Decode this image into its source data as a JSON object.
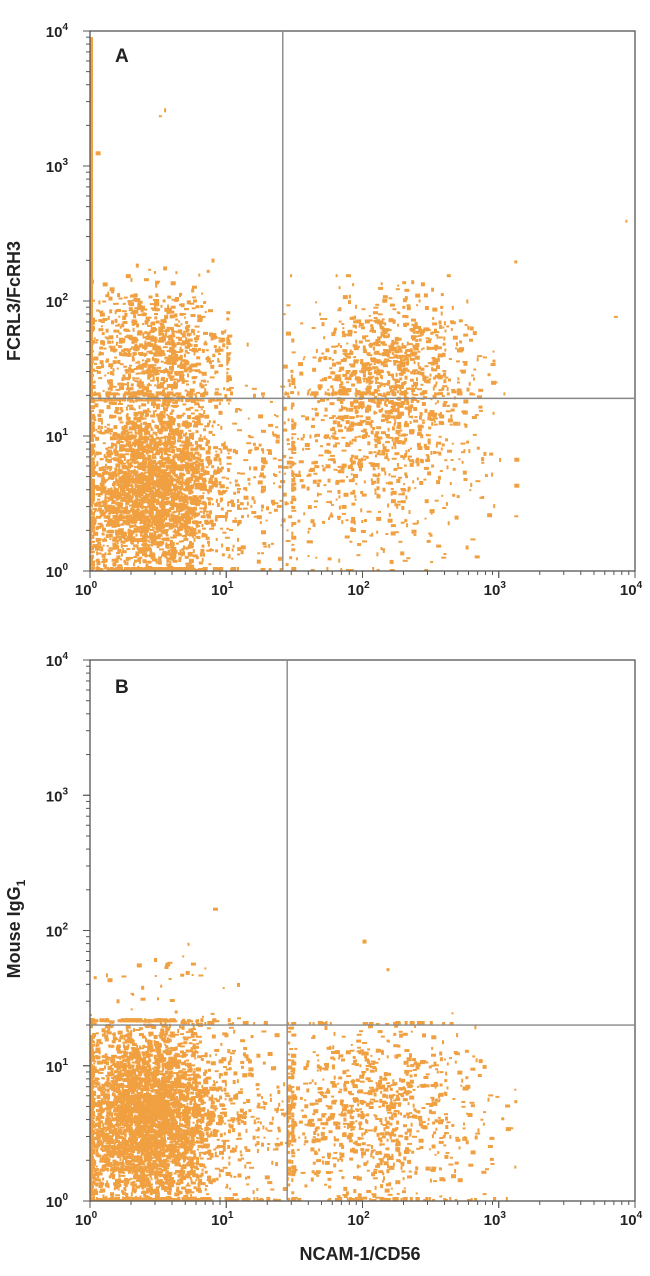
{
  "chart_data": [
    {
      "type": "scatter",
      "panel_label": "A",
      "xlabel": "",
      "ylabel": "FCRL3/FcRH3",
      "x_scale": "log",
      "y_scale": "log",
      "xlim": [
        1,
        10000
      ],
      "ylim": [
        1,
        10000
      ],
      "ticks": [
        1,
        10,
        100,
        1000,
        10000
      ],
      "tick_labels": [
        {
          "base": "10",
          "exp": "0"
        },
        {
          "base": "10",
          "exp": "1"
        },
        {
          "base": "10",
          "exp": "2"
        },
        {
          "base": "10",
          "exp": "3"
        },
        {
          "base": "10",
          "exp": "4"
        }
      ],
      "quadrant_gates": {
        "x": 26,
        "y": 19
      },
      "color": "#f0a040",
      "populations": [
        {
          "cx": 2.6,
          "cy": 4,
          "sx": 0.26,
          "sy": 0.36,
          "n": 2800,
          "xmin": 1,
          "xmax": 12,
          "ymin": 1,
          "ymax": 20
        },
        {
          "cx": 2.8,
          "cy": 40,
          "sx": 0.28,
          "sy": 0.25,
          "n": 900,
          "xmin": 1,
          "xmax": 10,
          "ymin": 18,
          "ymax": 300
        },
        {
          "cx": 150,
          "cy": 28,
          "sx": 0.3,
          "sy": 0.28,
          "n": 900,
          "xmin": 26,
          "xmax": 900,
          "ymin": 5,
          "ymax": 150
        },
        {
          "cx": 110,
          "cy": 6,
          "sx": 0.4,
          "sy": 0.38,
          "n": 520,
          "xmin": 18,
          "xmax": 1300,
          "ymin": 1,
          "ymax": 20
        },
        {
          "cx": 15,
          "cy": 5,
          "sx": 0.35,
          "sy": 0.4,
          "n": 260,
          "xmin": 5,
          "xmax": 30,
          "ymin": 1,
          "ymax": 100
        }
      ],
      "outliers": [
        [
          3.5,
          2500
        ],
        [
          3.2,
          2300
        ],
        [
          1300,
          190
        ],
        [
          7000,
          75
        ],
        [
          8500,
          380
        ],
        [
          1.1,
          1200
        ]
      ],
      "axis_line_x": [
        1.0,
        1.0
      ]
    },
    {
      "type": "scatter",
      "panel_label": "B",
      "xlabel": "NCAM-1/CD56",
      "ylabel": "Mouse IgG",
      "ylabel_sub": "1",
      "x_scale": "log",
      "y_scale": "log",
      "xlim": [
        1,
        10000
      ],
      "ylim": [
        1,
        10000
      ],
      "ticks": [
        1,
        10,
        100,
        1000,
        10000
      ],
      "tick_labels": [
        {
          "base": "10",
          "exp": "0"
        },
        {
          "base": "10",
          "exp": "1"
        },
        {
          "base": "10",
          "exp": "2"
        },
        {
          "base": "10",
          "exp": "3"
        },
        {
          "base": "10",
          "exp": "4"
        }
      ],
      "quadrant_gates": {
        "x": 28,
        "y": 20
      },
      "color": "#f0a040",
      "populations": [
        {
          "cx": 2.5,
          "cy": 4,
          "sx": 0.26,
          "sy": 0.36,
          "n": 3600,
          "xmin": 1,
          "xmax": 14,
          "ymin": 1,
          "ymax": 21
        },
        {
          "cx": 120,
          "cy": 4,
          "sx": 0.38,
          "sy": 0.35,
          "n": 900,
          "xmin": 28,
          "xmax": 1300,
          "ymin": 1,
          "ymax": 20
        },
        {
          "cx": 15,
          "cy": 4,
          "sx": 0.3,
          "sy": 0.4,
          "n": 300,
          "xmin": 6,
          "xmax": 30,
          "ymin": 1,
          "ymax": 20
        },
        {
          "cx": 3,
          "cy": 35,
          "sx": 0.3,
          "sy": 0.2,
          "n": 40,
          "xmin": 1,
          "xmax": 12,
          "ymin": 21,
          "ymax": 160
        }
      ],
      "outliers": [
        [
          8,
          140
        ],
        [
          100,
          80
        ],
        [
          150,
          50
        ],
        [
          450,
          24
        ],
        [
          5.5,
          55
        ]
      ]
    }
  ]
}
